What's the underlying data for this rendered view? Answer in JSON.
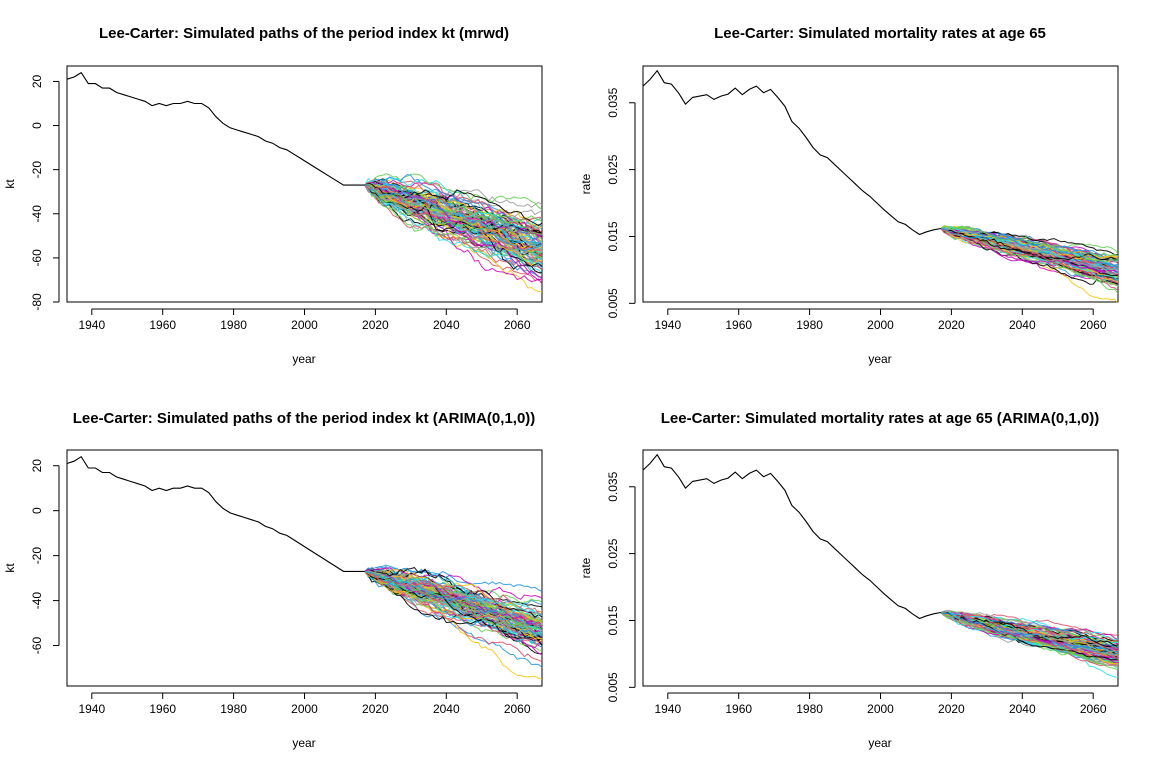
{
  "chart_data": [
    {
      "type": "line",
      "title": "Lee-Carter: Simulated paths of the period index kt (mrwd)",
      "xlabel": "year",
      "ylabel": "kt",
      "xlim": [
        1933,
        2067
      ],
      "ylim": [
        -80,
        27
      ],
      "xticks": [
        1940,
        1960,
        1980,
        2000,
        2020,
        2040,
        2060
      ],
      "yticks": [
        -80,
        -60,
        -40,
        -20,
        0,
        20
      ],
      "ytick_labels": [
        "-80",
        "-60",
        "-40",
        "-20",
        "0",
        "20"
      ],
      "historical": {
        "x": [
          1933,
          1935,
          1937,
          1939,
          1941,
          1943,
          1945,
          1947,
          1949,
          1951,
          1953,
          1955,
          1957,
          1959,
          1961,
          1963,
          1965,
          1967,
          1969,
          1971,
          1973,
          1975,
          1977,
          1979,
          1981,
          1983,
          1985,
          1987,
          1989,
          1991,
          1993,
          1995,
          1997,
          1999,
          2001,
          2003,
          2005,
          2007,
          2009,
          2011,
          2013,
          2015,
          2017
        ],
        "y": [
          21,
          22,
          24,
          19,
          19,
          17,
          17,
          15,
          14,
          13,
          12,
          11,
          9,
          10,
          9,
          10,
          10,
          11,
          10,
          10,
          8,
          4,
          1,
          -1,
          -2,
          -3,
          -4,
          -5,
          -7,
          -8,
          -10,
          -11,
          -13,
          -15,
          -17,
          -19,
          -21,
          -23,
          -25,
          -27,
          -27,
          -27,
          -27
        ]
      },
      "simulation": {
        "start_year": 2017,
        "end_year": 2067,
        "start_value": -27,
        "end_mean": -55,
        "end_spread": 16,
        "n_paths": 100
      }
    },
    {
      "type": "line",
      "title": "Lee-Carter: Simulated mortality rates at age 65",
      "xlabel": "year",
      "ylabel": "rate",
      "xlim": [
        1933,
        2067
      ],
      "ylim": [
        0.0052,
        0.0405
      ],
      "xticks": [
        1940,
        1960,
        1980,
        2000,
        2020,
        2040,
        2060
      ],
      "yticks": [
        0.005,
        0.015,
        0.025,
        0.035
      ],
      "ytick_labels": [
        "0.005",
        "0.015",
        "0.025",
        "0.035"
      ],
      "historical": {
        "x": [
          1933,
          1935,
          1937,
          1939,
          1941,
          1943,
          1945,
          1947,
          1949,
          1951,
          1953,
          1955,
          1957,
          1959,
          1961,
          1963,
          1965,
          1967,
          1969,
          1971,
          1973,
          1975,
          1977,
          1979,
          1981,
          1983,
          1985,
          1987,
          1989,
          1991,
          1993,
          1995,
          1997,
          1999,
          2001,
          2003,
          2005,
          2007,
          2009,
          2011,
          2013,
          2015,
          2017
        ],
        "y": [
          0.0375,
          0.0385,
          0.0398,
          0.038,
          0.0378,
          0.0365,
          0.0348,
          0.0358,
          0.036,
          0.0362,
          0.0355,
          0.036,
          0.0363,
          0.0372,
          0.0362,
          0.037,
          0.0375,
          0.0365,
          0.037,
          0.0358,
          0.0345,
          0.0322,
          0.0312,
          0.0298,
          0.0283,
          0.0272,
          0.0268,
          0.0258,
          0.0248,
          0.0238,
          0.0228,
          0.0218,
          0.021,
          0.02,
          0.019,
          0.0181,
          0.0172,
          0.0168,
          0.016,
          0.0153,
          0.0157,
          0.016,
          0.0162
        ]
      },
      "simulation": {
        "start_year": 2017,
        "end_year": 2067,
        "start_value": 0.0162,
        "end_mean": 0.0096,
        "end_spread": 0.0028,
        "n_paths": 100
      }
    },
    {
      "type": "line",
      "title": "Lee-Carter: Simulated paths of the period index kt (ARIMA(0,1,0))",
      "xlabel": "year",
      "ylabel": "kt",
      "xlim": [
        1933,
        2067
      ],
      "ylim": [
        -78,
        27
      ],
      "xticks": [
        1940,
        1960,
        1980,
        2000,
        2020,
        2040,
        2060
      ],
      "yticks": [
        -60,
        -40,
        -20,
        0,
        20
      ],
      "ytick_labels": [
        "-60",
        "-40",
        "-20",
        "0",
        "20"
      ],
      "historical": {
        "x": [
          1933,
          1935,
          1937,
          1939,
          1941,
          1943,
          1945,
          1947,
          1949,
          1951,
          1953,
          1955,
          1957,
          1959,
          1961,
          1963,
          1965,
          1967,
          1969,
          1971,
          1973,
          1975,
          1977,
          1979,
          1981,
          1983,
          1985,
          1987,
          1989,
          1991,
          1993,
          1995,
          1997,
          1999,
          2001,
          2003,
          2005,
          2007,
          2009,
          2011,
          2013,
          2015,
          2017
        ],
        "y": [
          21,
          22,
          24,
          19,
          19,
          17,
          17,
          15,
          14,
          13,
          12,
          11,
          9,
          10,
          9,
          10,
          10,
          11,
          10,
          10,
          8,
          4,
          1,
          -1,
          -2,
          -3,
          -4,
          -5,
          -7,
          -8,
          -10,
          -11,
          -13,
          -15,
          -17,
          -19,
          -21,
          -23,
          -25,
          -27,
          -27,
          -27,
          -27
        ]
      },
      "simulation": {
        "start_year": 2017,
        "end_year": 2067,
        "start_value": -27,
        "end_mean": -53,
        "end_spread": 13,
        "n_paths": 100
      }
    },
    {
      "type": "line",
      "title": "Lee-Carter: Simulated mortality rates at age 65 (ARIMA(0,1,0))",
      "xlabel": "year",
      "ylabel": "rate",
      "xlim": [
        1933,
        2067
      ],
      "ylim": [
        0.0052,
        0.0405
      ],
      "xticks": [
        1940,
        1960,
        1980,
        2000,
        2020,
        2040,
        2060
      ],
      "yticks": [
        0.005,
        0.015,
        0.025,
        0.035
      ],
      "ytick_labels": [
        "0.005",
        "0.015",
        "0.025",
        "0.035"
      ],
      "historical": {
        "x": [
          1933,
          1935,
          1937,
          1939,
          1941,
          1943,
          1945,
          1947,
          1949,
          1951,
          1953,
          1955,
          1957,
          1959,
          1961,
          1963,
          1965,
          1967,
          1969,
          1971,
          1973,
          1975,
          1977,
          1979,
          1981,
          1983,
          1985,
          1987,
          1989,
          1991,
          1993,
          1995,
          1997,
          1999,
          2001,
          2003,
          2005,
          2007,
          2009,
          2011,
          2013,
          2015,
          2017
        ],
        "y": [
          0.0375,
          0.0385,
          0.0398,
          0.038,
          0.0378,
          0.0365,
          0.0348,
          0.0358,
          0.036,
          0.0362,
          0.0355,
          0.036,
          0.0363,
          0.0372,
          0.0362,
          0.037,
          0.0375,
          0.0365,
          0.037,
          0.0358,
          0.0345,
          0.0322,
          0.0312,
          0.0298,
          0.0283,
          0.0272,
          0.0268,
          0.0258,
          0.0248,
          0.0238,
          0.0228,
          0.0218,
          0.021,
          0.02,
          0.019,
          0.0181,
          0.0172,
          0.0168,
          0.016,
          0.0153,
          0.0157,
          0.016,
          0.0162
        ]
      },
      "simulation": {
        "start_year": 2017,
        "end_year": 2067,
        "start_value": 0.0162,
        "end_mean": 0.0098,
        "end_spread": 0.0024,
        "n_paths": 100
      }
    }
  ],
  "colors": {
    "historical": "#000000",
    "palette": [
      "#000000",
      "#DF536B",
      "#61D04F",
      "#2297E6",
      "#28E2E5",
      "#CD0BBC",
      "#F5C710",
      "#9E9E9E"
    ]
  }
}
